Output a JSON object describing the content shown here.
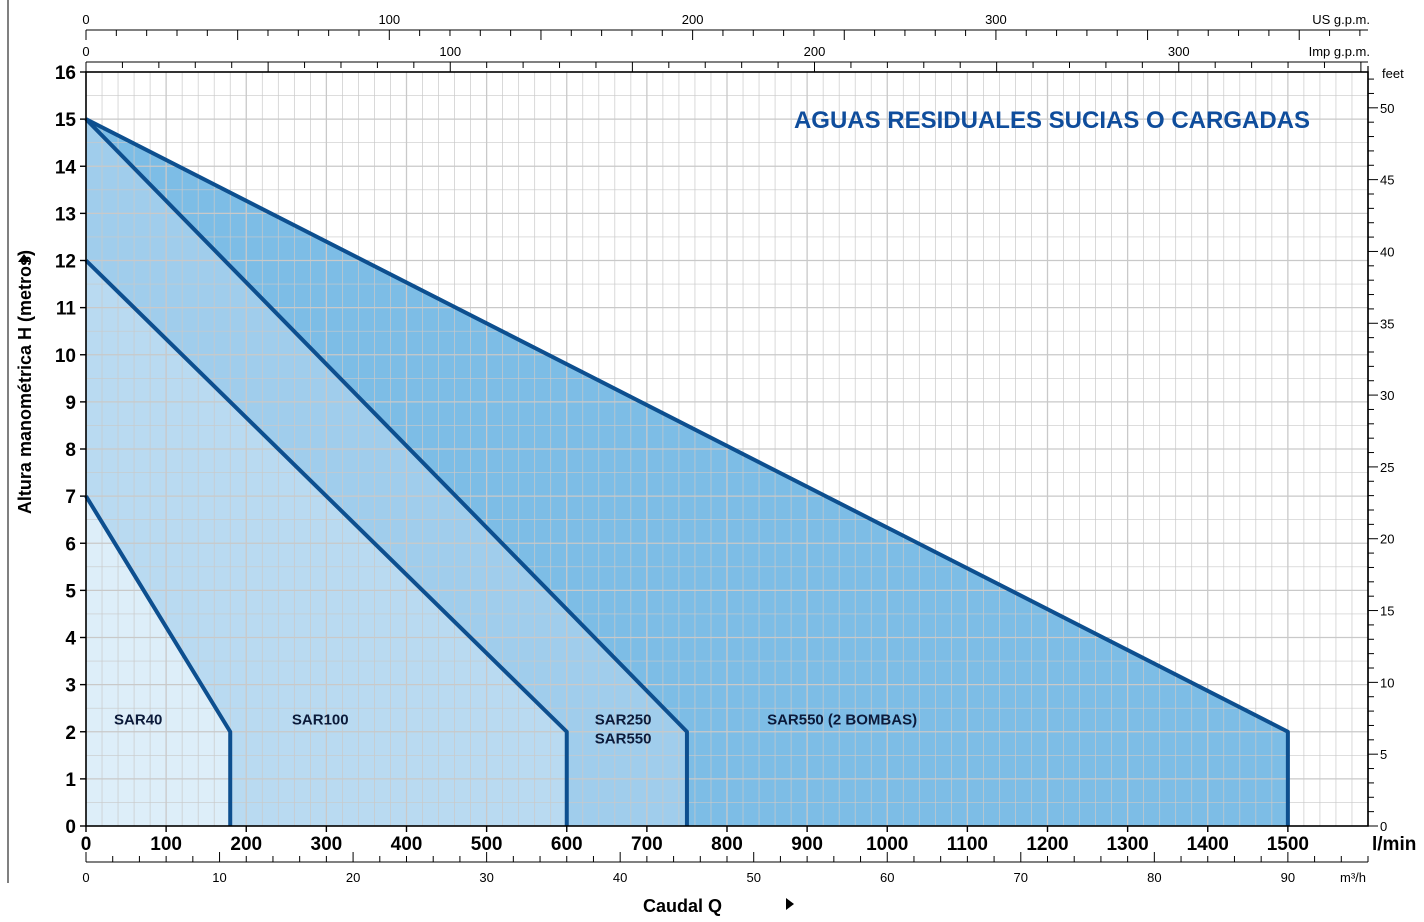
{
  "chart_data": {
    "type": "area",
    "title": "AGUAS RESIDUALES SUCIAS O CARGADAS",
    "xlabel": "Caudal Q",
    "ylabel": "Altura manométrica H (metros)",
    "xlim": [
      0,
      1600
    ],
    "ylim": [
      0,
      16
    ],
    "x_unit": "l/min",
    "grid": true,
    "x_ticks_lmin": [
      0,
      100,
      200,
      300,
      400,
      500,
      600,
      700,
      800,
      900,
      1000,
      1100,
      1200,
      1300,
      1400,
      1500
    ],
    "y_ticks_m": [
      0,
      1,
      2,
      3,
      4,
      5,
      6,
      7,
      8,
      9,
      10,
      11,
      12,
      13,
      14,
      15,
      16
    ],
    "secondary_axes": {
      "top_us_gpm": {
        "label": "US g.p.m.",
        "ticks": [
          0,
          100,
          200,
          300
        ]
      },
      "top_imp_gpm": {
        "label": "Imp g.p.m.",
        "ticks": [
          0,
          100,
          200,
          300
        ]
      },
      "right_feet": {
        "label": "feet",
        "ticks": [
          0,
          5,
          10,
          15,
          20,
          25,
          30,
          35,
          40,
          45,
          50
        ]
      },
      "bottom_m3h": {
        "label": "m³/h",
        "ticks": [
          0,
          10,
          20,
          30,
          40,
          50,
          60,
          70,
          80,
          90
        ]
      }
    },
    "series": [
      {
        "name": "SAR40",
        "x": [
          0,
          180,
          180
        ],
        "y": [
          7,
          2,
          0
        ],
        "fill": "#ddeef9"
      },
      {
        "name": "SAR100",
        "x": [
          0,
          600,
          600
        ],
        "y": [
          12,
          2,
          0
        ],
        "fill": "#b9daf1"
      },
      {
        "name": "SAR250 SAR550",
        "x": [
          0,
          750,
          750
        ],
        "y": [
          15,
          2,
          0
        ],
        "fill": "#a0cdec"
      },
      {
        "name": "SAR550 (2 BOMBAS)",
        "x": [
          0,
          1500,
          1500
        ],
        "y": [
          15,
          2,
          0
        ],
        "fill": "#7dbde6"
      }
    ],
    "region_labels": [
      {
        "text": "SAR40",
        "x": 35,
        "y": 2.15
      },
      {
        "text": "SAR100",
        "x": 257,
        "y": 2.15
      },
      {
        "text": "SAR250",
        "x": 635,
        "y": 2.15
      },
      {
        "text": "SAR550",
        "x": 635,
        "y": 1.75
      },
      {
        "text": "SAR550 (2 BOMBAS)",
        "x": 850,
        "y": 2.15
      }
    ],
    "colors": {
      "curve": "#0d4f8f",
      "title": "#0f4d9c",
      "grid": "#c9c9c9",
      "axis": "#000000"
    }
  }
}
